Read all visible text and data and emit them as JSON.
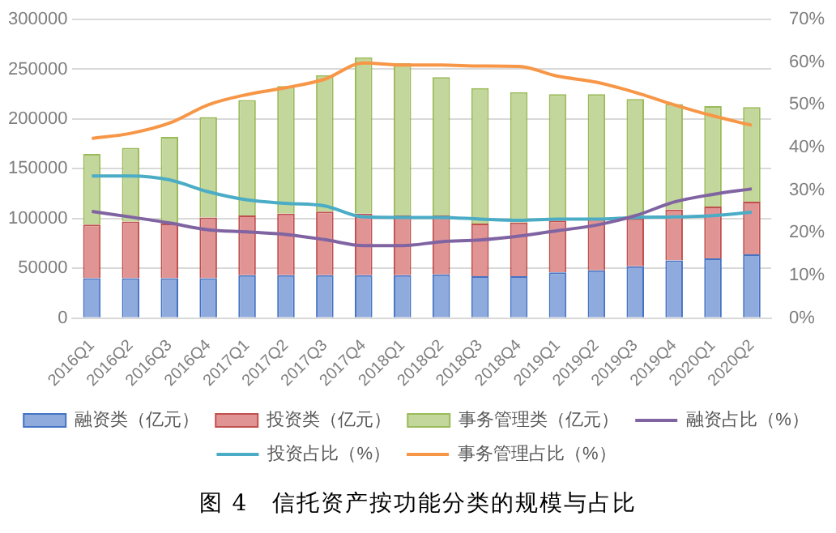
{
  "chart_data": {
    "type": "bar",
    "title": "图 4　信托资产按功能分类的规模与占比",
    "categories": [
      "2016Q1",
      "2016Q2",
      "2016Q3",
      "2016Q4",
      "2017Q1",
      "2017Q2",
      "2017Q3",
      "2017Q4",
      "2018Q1",
      "2018Q2",
      "2018Q3",
      "2018Q4",
      "2019Q1",
      "2019Q2",
      "2019Q3",
      "2019Q4",
      "2020Q1",
      "2020Q2"
    ],
    "stacked": true,
    "grid": "y",
    "legend": "bottom",
    "marker": "none",
    "line_style": "solid",
    "ylim": [
      0,
      300000
    ],
    "yticks": [
      0,
      50000,
      100000,
      150000,
      200000,
      250000,
      300000
    ],
    "y2lim": [
      0,
      70
    ],
    "y2ticks": [
      {
        "value": 0,
        "label": "0%"
      },
      {
        "value": 10,
        "label": "10%"
      },
      {
        "value": 20,
        "label": "20%"
      },
      {
        "value": 30,
        "label": "30%"
      },
      {
        "value": 40,
        "label": "40%"
      },
      {
        "value": 50,
        "label": "50%"
      },
      {
        "value": 60,
        "label": "60%"
      },
      {
        "value": 70,
        "label": "70%"
      }
    ],
    "series": [
      {
        "name": "融资类（亿元）",
        "type": "bar",
        "color": "#8faadc",
        "values": [
          40000,
          40000,
          40000,
          40000,
          43000,
          43000,
          43000,
          43000,
          43000,
          44000,
          42000,
          42000,
          46000,
          48000,
          52000,
          58000,
          60000,
          64000
        ]
      },
      {
        "name": "投资类（亿元）",
        "type": "bar",
        "color": "#e09494",
        "values": [
          54000,
          57000,
          55000,
          61000,
          60000,
          62000,
          64000,
          62000,
          60000,
          59000,
          53000,
          54000,
          52000,
          52000,
          48000,
          51000,
          52000,
          53000
        ]
      },
      {
        "name": "事务管理类（亿元）",
        "type": "bar",
        "color": "#c3d69b",
        "values": [
          71000,
          74000,
          87000,
          101000,
          116000,
          128000,
          137000,
          157000,
          153000,
          139000,
          136000,
          131000,
          127000,
          125000,
          120000,
          106000,
          101000,
          95000
        ]
      },
      {
        "name": "融资占比（%）",
        "type": "line",
        "axis": "y2",
        "color": "#8064a2",
        "values": [
          25,
          23.7,
          22.3,
          20.7,
          20.2,
          19.6,
          18.4,
          17,
          17,
          17.9,
          18.3,
          19.2,
          20.5,
          21.8,
          24,
          27.2,
          29,
          30.3
        ]
      },
      {
        "name": "投资占比（%）",
        "type": "line",
        "axis": "y2",
        "color": "#4bacc6",
        "values": [
          33.3,
          33.3,
          32.4,
          29.6,
          27.7,
          26.9,
          26.3,
          23.7,
          23.6,
          23.6,
          23.2,
          22.9,
          23.2,
          23.2,
          23.6,
          23.7,
          24,
          24.8
        ]
      },
      {
        "name": "事务管理占比（%）",
        "type": "line",
        "axis": "y2",
        "color": "#f79646",
        "values": [
          42.1,
          43.3,
          45.7,
          50,
          52.4,
          54,
          56,
          59.8,
          59.3,
          59.3,
          59.1,
          59,
          56.7,
          55.3,
          52.9,
          50,
          47.4,
          45.2
        ]
      }
    ]
  }
}
